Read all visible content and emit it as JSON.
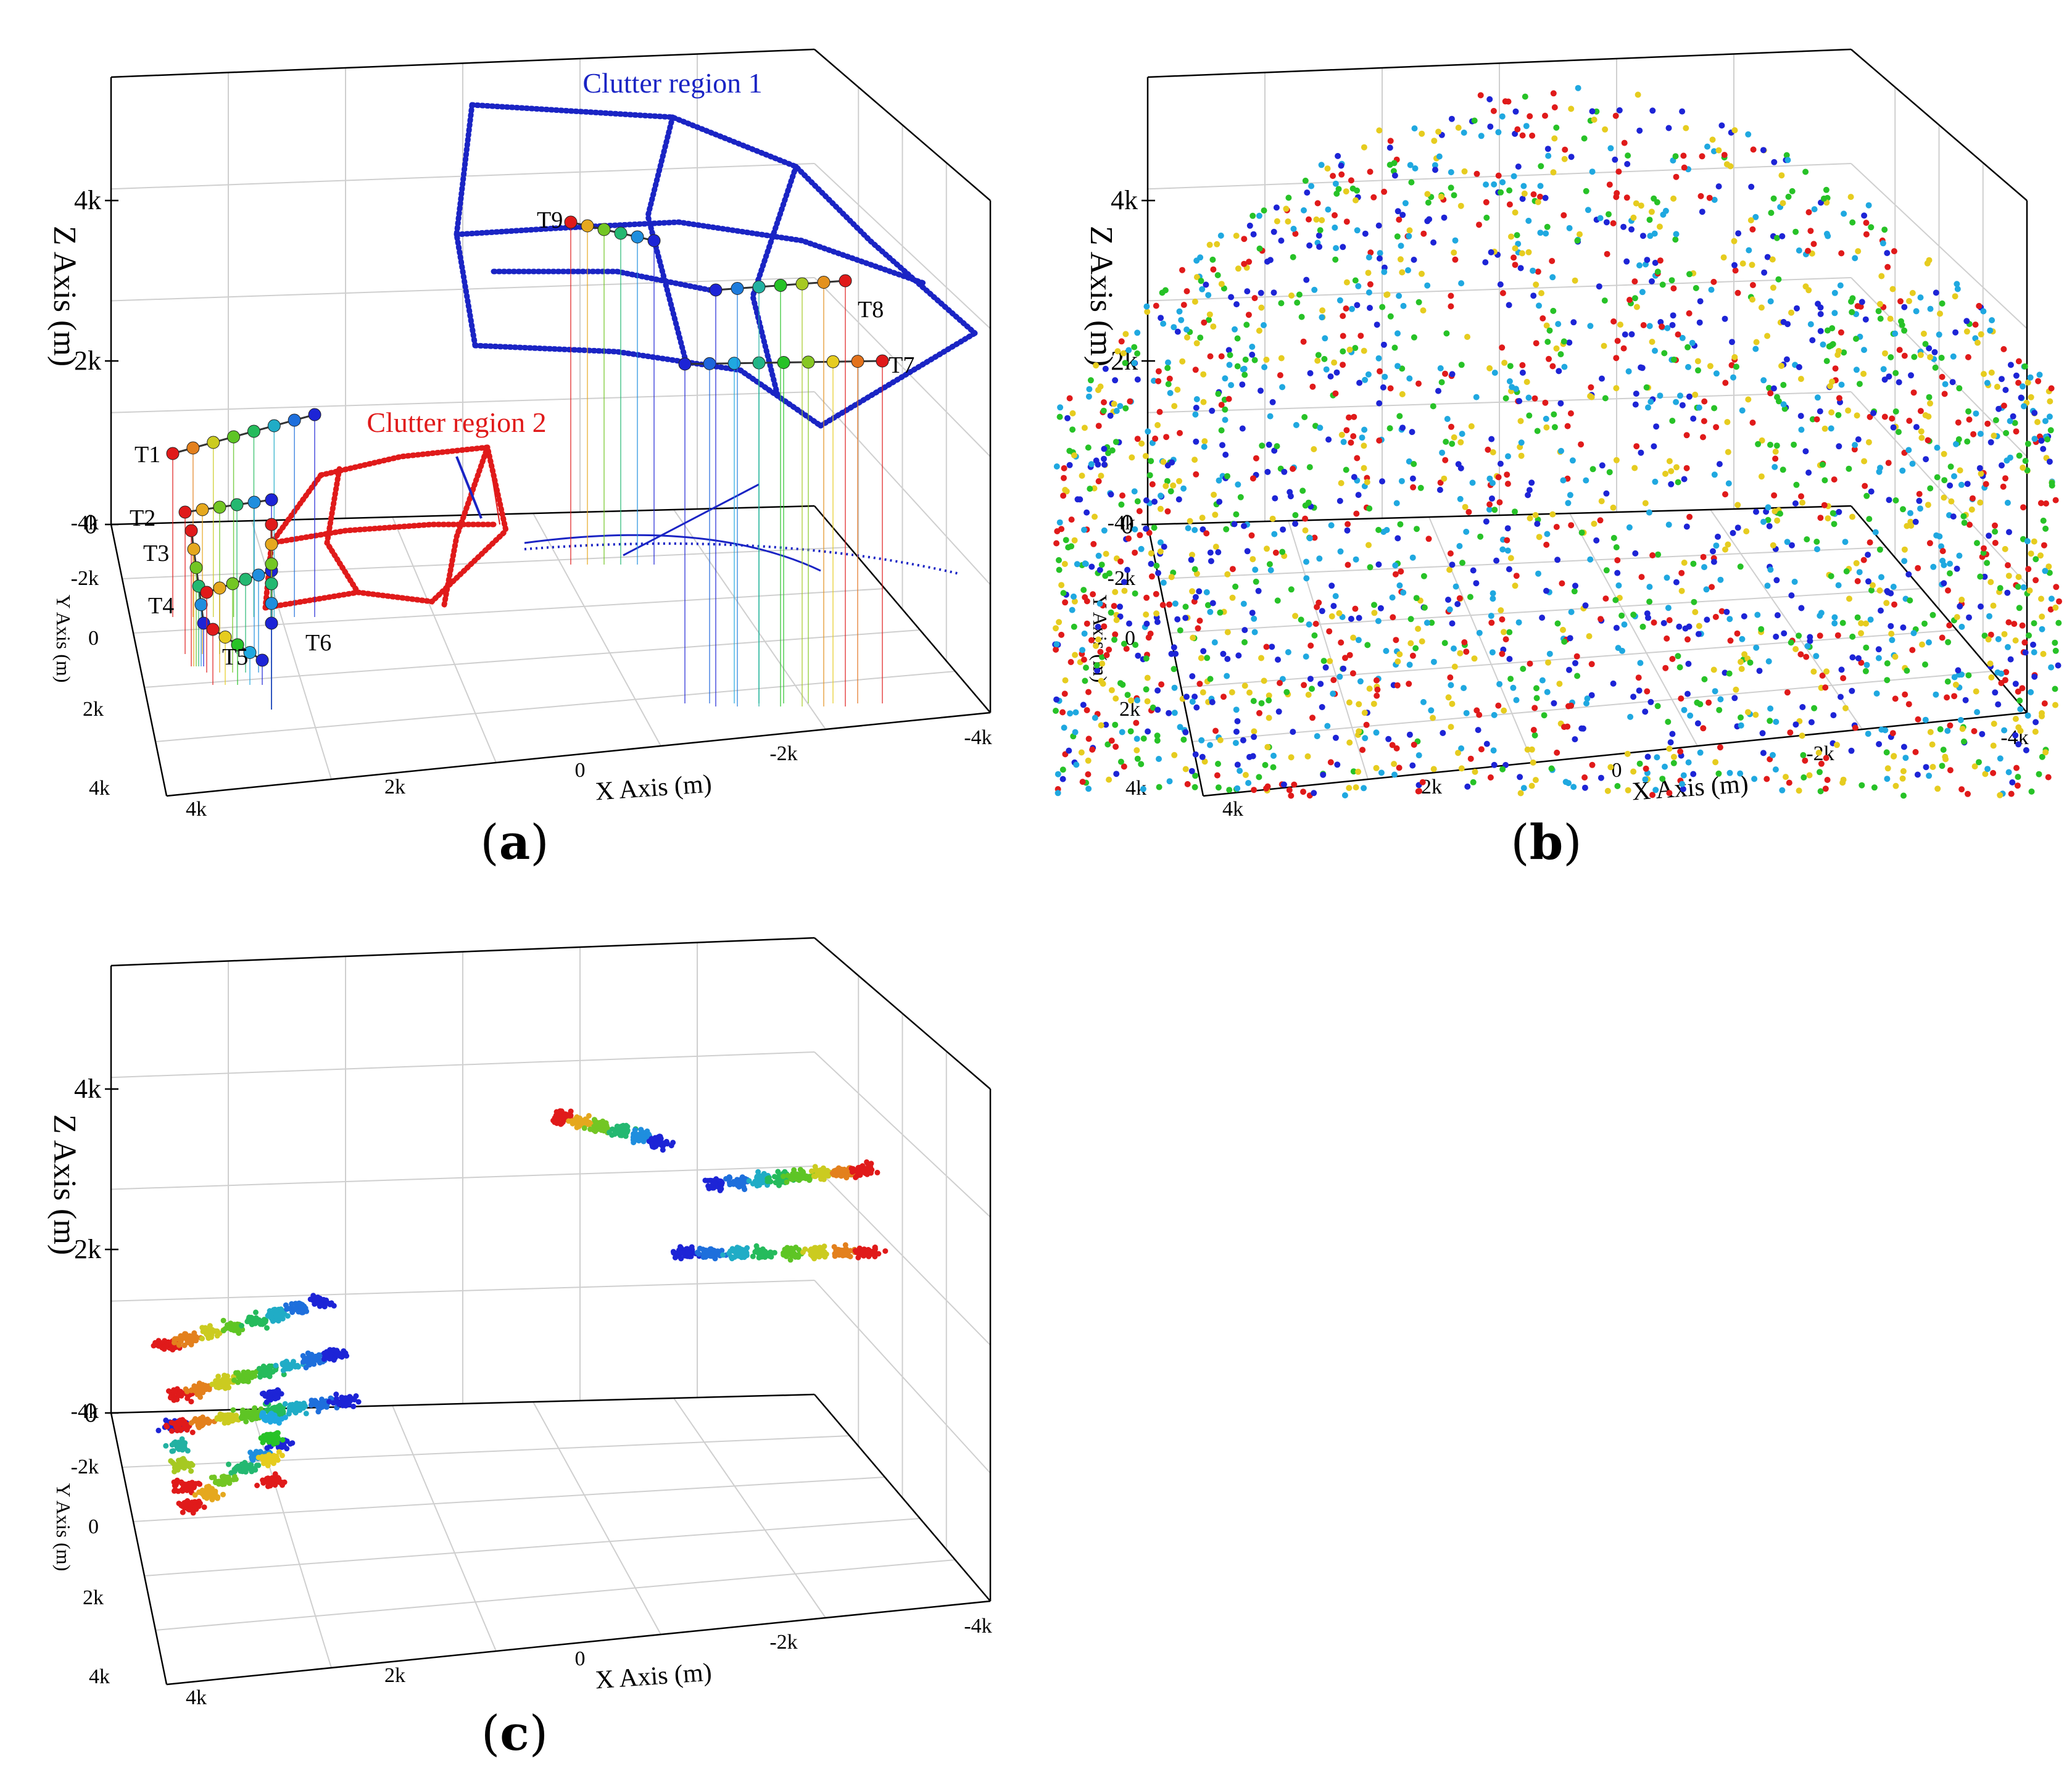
{
  "figure": {
    "panel_labels": {
      "a": "a",
      "b": "b",
      "c": "c"
    }
  },
  "chart_data": [
    {
      "panel": "a",
      "type": "scatter",
      "dimensions": 3,
      "xlabel": "X Axis (m)",
      "ylabel": "Y Axis (m)",
      "zlabel": "Z Axis (m)",
      "x_ticks": [
        "4k",
        "2k",
        "0",
        "-2k",
        "-4k"
      ],
      "y_ticks": [
        "-4k",
        "-2k",
        "0",
        "2k",
        "4k"
      ],
      "z_ticks": [
        "0",
        "2k",
        "4k"
      ],
      "xlim": [
        -4000,
        4000
      ],
      "ylim": [
        -4000,
        4000
      ],
      "zlim": [
        0,
        5500
      ],
      "regions": [
        {
          "name": "Clutter region 1",
          "color": "#1a24c4",
          "label": "Clutter region 1"
        },
        {
          "name": "Clutter region 2",
          "color": "#e01a1a",
          "label": "Clutter region 2"
        }
      ],
      "targets": [
        {
          "id": "T1",
          "label": "T1",
          "note": "horizontal track, z ~1.0k"
        },
        {
          "id": "T2",
          "label": "T2",
          "note": "horizontal track, z ~0.6k"
        },
        {
          "id": "T3",
          "label": "T3",
          "note": "vertical-ish track"
        },
        {
          "id": "T4",
          "label": "T4",
          "note": "horizontal track, z ~0.2k"
        },
        {
          "id": "T5",
          "label": "T5",
          "note": "descending track"
        },
        {
          "id": "T6",
          "label": "T6",
          "note": "descending track"
        },
        {
          "id": "T7",
          "label": "T7",
          "note": "horizontal track, z ~2.0k"
        },
        {
          "id": "T8",
          "label": "T8",
          "note": "horizontal track, z ~3.0k"
        },
        {
          "id": "T9",
          "label": "T9",
          "note": "horizontal track, z ~3.8k"
        }
      ]
    },
    {
      "panel": "b",
      "type": "scatter",
      "dimensions": 3,
      "description": "random measurement point cloud with clutter",
      "xlabel": "X Axis (m)",
      "ylabel": "Y Axis (m)",
      "zlabel": "Z Axis (m)",
      "x_ticks": [
        "4k",
        "2k",
        "0",
        "-2k",
        "-4k"
      ],
      "y_ticks": [
        "-4k",
        "-2k",
        "0",
        "2k",
        "4k"
      ],
      "z_ticks": [
        "0",
        "2k",
        "4k"
      ],
      "point_count": 2600,
      "point_colors": [
        "#1d24d6",
        "#1fa8e0",
        "#27c227",
        "#e6cc1f",
        "#e01a1a"
      ]
    },
    {
      "panel": "c",
      "type": "scatter",
      "dimensions": 3,
      "description": "clustered target detections colored by time",
      "xlabel": "X Axis (m)",
      "ylabel": "Y Axis (m)",
      "zlabel": "Z Axis (m)",
      "x_ticks": [
        "4k",
        "2k",
        "0",
        "-2k",
        "-4k"
      ],
      "y_ticks": [
        "-4k",
        "-2k",
        "0",
        "2k",
        "4k"
      ],
      "z_ticks": [
        "0",
        "2k",
        "4k"
      ]
    }
  ],
  "colors": {
    "axis": "#000000",
    "grid": "#cfcfcf",
    "clutter1": "#1a24c4",
    "clutter2": "#e01a1a"
  }
}
